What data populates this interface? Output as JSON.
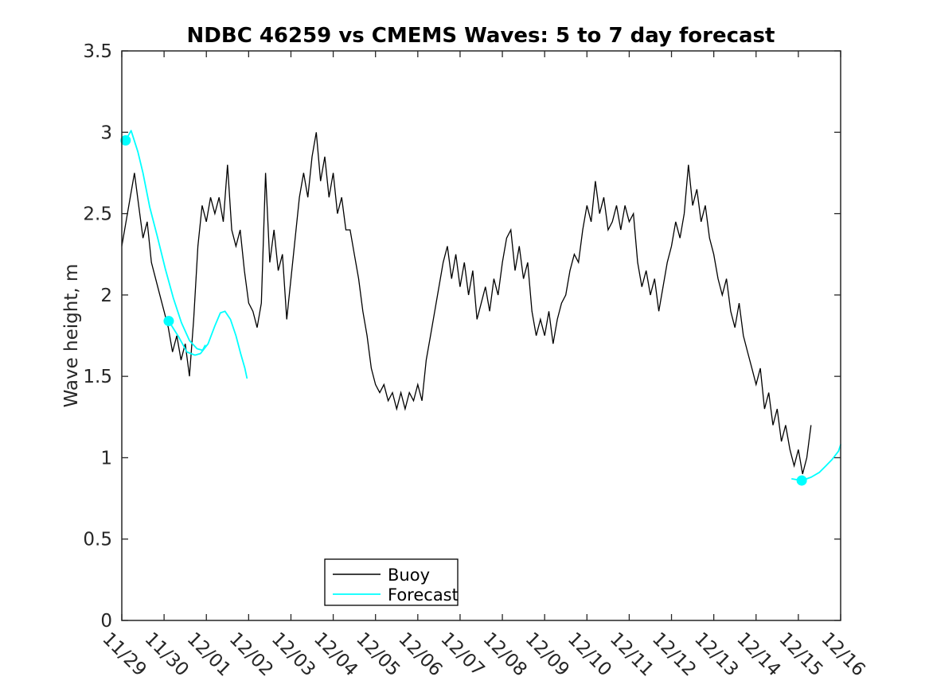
{
  "figure": {
    "background": "#ffffff",
    "title": "NDBC 46259 vs CMEMS Waves: 5 to 7 day forecast"
  },
  "axes": {
    "ylabel": "Wave height, m",
    "ylim": [
      0,
      3.5
    ],
    "ytick_labels": [
      "0",
      "0.5",
      "1",
      "1.5",
      "2",
      "2.5",
      "3",
      "3.5"
    ],
    "ytick_values": [
      0,
      0.5,
      1,
      1.5,
      2,
      2.5,
      3,
      3.5
    ],
    "xtick_labels": [
      "11/29",
      "11/30",
      "12/01",
      "12/02",
      "12/03",
      "12/04",
      "12/05",
      "12/06",
      "12/07",
      "12/08",
      "12/09",
      "12/10",
      "12/11",
      "12/12",
      "12/13",
      "12/14",
      "12/15",
      "12/16"
    ],
    "axis_color": "#262626",
    "tick_label_color": "#262626"
  },
  "legend": {
    "entries": [
      {
        "label": "Buoy",
        "color": "#000000"
      },
      {
        "label": "Forecast",
        "color": "#00ffff"
      }
    ]
  },
  "chart_data": {
    "type": "line",
    "title": "NDBC 46259 vs CMEMS Waves: 5 to 7 day forecast",
    "xlabel": "",
    "ylabel": "Wave height, m",
    "ylim": [
      0,
      3.5
    ],
    "x_unit": "days since 11/29",
    "x_range_days": [
      0,
      17
    ],
    "grid": false,
    "legend_position": "bottom-center-inside",
    "yticks": [
      0,
      0.5,
      1,
      1.5,
      2,
      2.5,
      3,
      3.5
    ],
    "xtick_labels": [
      "11/29",
      "11/30",
      "12/01",
      "12/02",
      "12/03",
      "12/04",
      "12/05",
      "12/06",
      "12/07",
      "12/08",
      "12/09",
      "12/10",
      "12/11",
      "12/12",
      "12/13",
      "12/14",
      "12/15",
      "12/16"
    ],
    "series": [
      {
        "name": "Buoy",
        "color": "#000000",
        "x_start": 0,
        "x_step": 0.1,
        "values": [
          2.3,
          2.45,
          2.6,
          2.75,
          2.55,
          2.35,
          2.45,
          2.2,
          2.1,
          2.0,
          1.9,
          1.8,
          1.65,
          1.75,
          1.6,
          1.7,
          1.5,
          1.85,
          2.3,
          2.55,
          2.45,
          2.6,
          2.5,
          2.6,
          2.45,
          2.8,
          2.4,
          2.3,
          2.4,
          2.15,
          1.95,
          1.9,
          1.8,
          1.95,
          2.75,
          2.2,
          2.4,
          2.15,
          2.25,
          1.85,
          2.1,
          2.35,
          2.6,
          2.75,
          2.6,
          2.85,
          3.0,
          2.7,
          2.85,
          2.6,
          2.75,
          2.5,
          2.6,
          2.4,
          2.4,
          2.25,
          2.1,
          1.9,
          1.75,
          1.55,
          1.45,
          1.4,
          1.45,
          1.35,
          1.4,
          1.3,
          1.4,
          1.3,
          1.4,
          1.35,
          1.45,
          1.35,
          1.6,
          1.75,
          1.9,
          2.05,
          2.2,
          2.3,
          2.1,
          2.25,
          2.05,
          2.2,
          2.0,
          2.15,
          1.85,
          1.95,
          2.05,
          1.9,
          2.1,
          2.0,
          2.2,
          2.35,
          2.4,
          2.15,
          2.3,
          2.1,
          2.2,
          1.9,
          1.75,
          1.85,
          1.75,
          1.9,
          1.7,
          1.85,
          1.95,
          2.0,
          2.15,
          2.25,
          2.2,
          2.4,
          2.55,
          2.45,
          2.7,
          2.5,
          2.6,
          2.4,
          2.45,
          2.55,
          2.4,
          2.55,
          2.45,
          2.5,
          2.2,
          2.05,
          2.15,
          2.0,
          2.1,
          1.9,
          2.05,
          2.2,
          2.3,
          2.45,
          2.35,
          2.5,
          2.8,
          2.55,
          2.65,
          2.45,
          2.55,
          2.35,
          2.25,
          2.1,
          2.0,
          2.1,
          1.9,
          1.8,
          1.95,
          1.75,
          1.65,
          1.55,
          1.45,
          1.55,
          1.3,
          1.4,
          1.2,
          1.3,
          1.1,
          1.2,
          1.05,
          0.95,
          1.05,
          0.9,
          1.0,
          1.2
        ]
      },
      {
        "name": "Forecast",
        "color": "#00ffff",
        "segments": [
          {
            "x": [
              0.09,
              0.22,
              0.38,
              0.5,
              0.66,
              0.84,
              1.03,
              1.22,
              1.41,
              1.6,
              1.78,
              1.91,
              1.97
            ],
            "y": [
              2.95,
              3.01,
              2.88,
              2.75,
              2.54,
              2.36,
              2.16,
              1.98,
              1.83,
              1.72,
              1.67,
              1.66,
              1.69
            ]
          },
          {
            "x": [
              1.11,
              1.35,
              1.54,
              1.73,
              1.86,
              2.04,
              2.2,
              2.33,
              2.44,
              2.57,
              2.7,
              2.81,
              2.91,
              2.96
            ],
            "y": [
              1.84,
              1.74,
              1.65,
              1.63,
              1.64,
              1.7,
              1.81,
              1.89,
              1.9,
              1.85,
              1.75,
              1.64,
              1.55,
              1.49
            ]
          },
          {
            "x": [
              15.85,
              16.08,
              16.3,
              16.5,
              16.65,
              16.8,
              16.95,
              17.0
            ],
            "y": [
              0.87,
              0.86,
              0.88,
              0.91,
              0.95,
              0.99,
              1.04,
              1.08
            ]
          }
        ]
      }
    ],
    "markers": {
      "name": "forecast-start-markers",
      "color": "#00ffff",
      "points": [
        {
          "x": 0.09,
          "y": 2.95
        },
        {
          "x": 1.11,
          "y": 1.84
        },
        {
          "x": 16.08,
          "y": 0.86
        }
      ]
    }
  }
}
